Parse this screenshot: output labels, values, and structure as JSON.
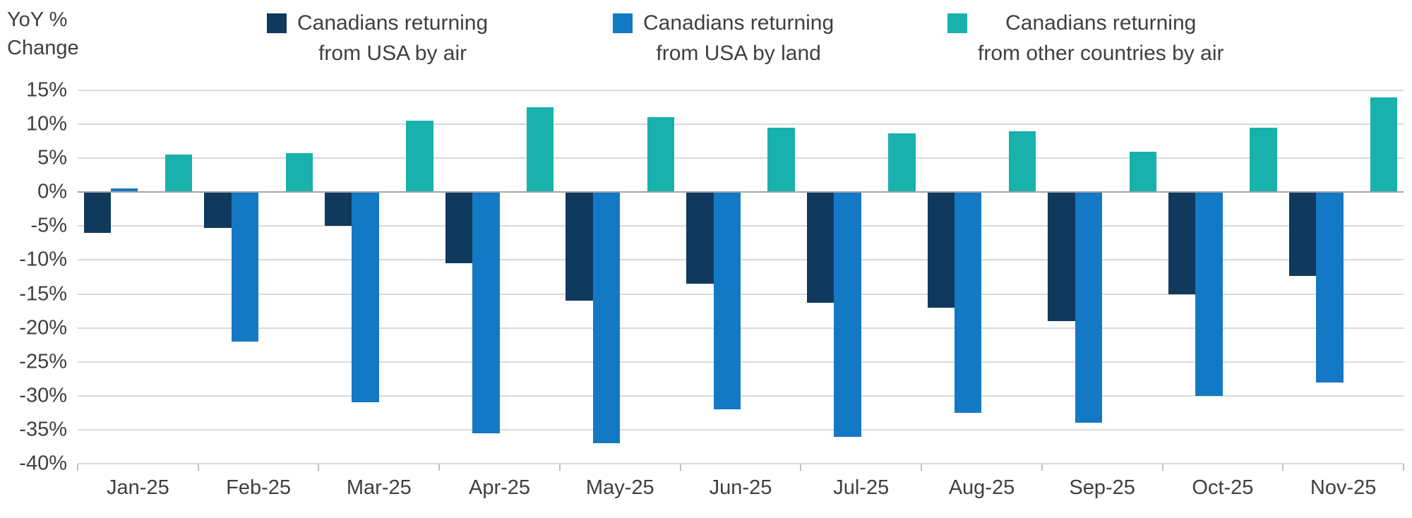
{
  "chart_data": {
    "type": "bar",
    "title": "",
    "ylabel": "YoY % Change",
    "ylabel_lines": [
      "YoY %",
      "Change"
    ],
    "xlabel": "",
    "ylim": [
      -40,
      15
    ],
    "ytick_step": 5,
    "ytick_suffix": "%",
    "grid": true,
    "legend_position": "top",
    "categories": [
      "Jan-25",
      "Feb-25",
      "Mar-25",
      "Apr-25",
      "May-25",
      "Jun-25",
      "Jul-25",
      "Aug-25",
      "Sep-25",
      "Oct-25",
      "Nov-25"
    ],
    "series": [
      {
        "name": "Canadians returning from USA by air",
        "name_lines": [
          "Canadians returning",
          "from USA by air"
        ],
        "color": "#0f3a5e",
        "values": [
          -6,
          -5.3,
          -5,
          -10.5,
          -16,
          -13.5,
          -16.3,
          -17,
          -19,
          -15,
          -12.3
        ]
      },
      {
        "name": "Canadians returning from USA by land",
        "name_lines": [
          "Canadians returning",
          "from USA by land"
        ],
        "color": "#1479c4",
        "values": [
          0.5,
          -22,
          -31,
          -35.5,
          -37,
          -32,
          -36,
          -32.5,
          -34,
          -30,
          -28
        ]
      },
      {
        "name": "Canadians returning from other countries by air",
        "name_lines": [
          "Canadians returning",
          "from other countries by air"
        ],
        "color": "#18b1ac",
        "values": [
          5.5,
          5.7,
          10.5,
          12.5,
          11,
          9.5,
          8.7,
          9,
          6,
          9.5,
          14
        ]
      }
    ],
    "colors": {
      "grid": "#d9d9d9",
      "zero_line": "#a3a3a3",
      "text": "#3f3f3f"
    }
  }
}
